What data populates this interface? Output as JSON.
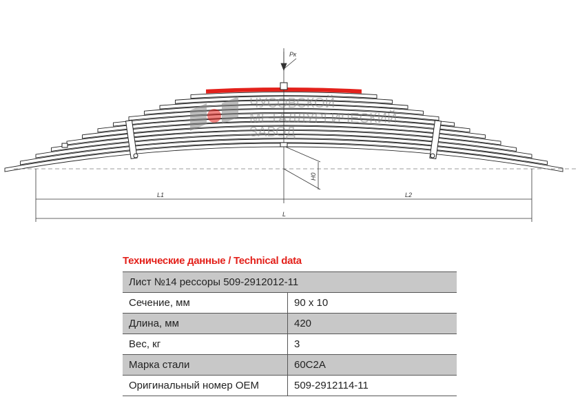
{
  "drawing": {
    "load_label": "Pк",
    "height_label": "H0",
    "l1_label": "L1",
    "l2_label": "L2",
    "l_label": "L",
    "highlight_color": "#e3211b",
    "watermark": [
      "ЧУСОВСКОЙ",
      "МЕТАЛЛУРГИЧЕСКИЙ",
      "ЗАВОД"
    ]
  },
  "specs": {
    "title": "Технические данные / Technical data",
    "header": "Лист №14 рессоры 509-2912012-11",
    "rows": [
      {
        "label": "Сечение, мм",
        "value": "90 x 10"
      },
      {
        "label": "Длина, мм",
        "value": "420"
      },
      {
        "label": "Вес, кг",
        "value": "3"
      },
      {
        "label": "Марка стали",
        "value": "60С2А"
      },
      {
        "label": "Оригинальный номер OEM",
        "value": "509-2912114-11"
      }
    ]
  }
}
